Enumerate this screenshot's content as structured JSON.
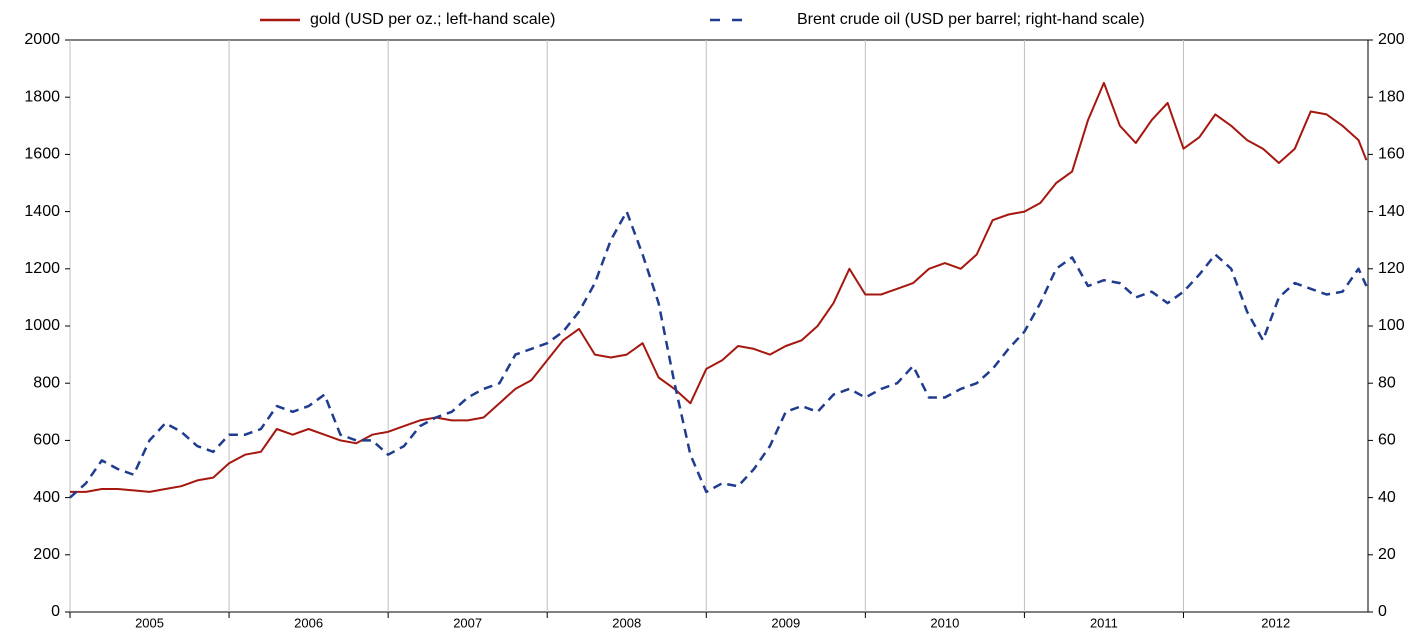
{
  "chart_data": {
    "type": "line",
    "x": [
      2005.0,
      2005.1,
      2005.2,
      2005.3,
      2005.4,
      2005.5,
      2005.6,
      2005.7,
      2005.8,
      2005.9,
      2006.0,
      2006.1,
      2006.2,
      2006.3,
      2006.4,
      2006.5,
      2006.6,
      2006.7,
      2006.8,
      2006.9,
      2007.0,
      2007.1,
      2007.2,
      2007.3,
      2007.4,
      2007.5,
      2007.6,
      2007.7,
      2007.8,
      2007.9,
      2008.0,
      2008.1,
      2008.2,
      2008.3,
      2008.4,
      2008.5,
      2008.6,
      2008.7,
      2008.8,
      2008.9,
      2009.0,
      2009.1,
      2009.2,
      2009.3,
      2009.4,
      2009.5,
      2009.6,
      2009.7,
      2009.8,
      2009.9,
      2010.0,
      2010.1,
      2010.2,
      2010.3,
      2010.4,
      2010.5,
      2010.6,
      2010.7,
      2010.8,
      2010.9,
      2011.0,
      2011.1,
      2011.2,
      2011.3,
      2011.4,
      2011.5,
      2011.6,
      2011.7,
      2011.8,
      2011.9,
      2012.0,
      2012.1,
      2012.2,
      2012.3,
      2012.4,
      2012.5,
      2012.6,
      2012.7,
      2012.8,
      2012.9,
      2013.0,
      2013.1,
      2013.15
    ],
    "series": [
      {
        "name": "gold (USD per oz.; left-hand scale)",
        "color": "#a5170f",
        "dash": "solid",
        "axis": "y",
        "values": [
          420,
          420,
          430,
          430,
          425,
          420,
          430,
          440,
          460,
          470,
          520,
          550,
          560,
          640,
          620,
          640,
          620,
          600,
          590,
          620,
          630,
          650,
          670,
          680,
          670,
          670,
          680,
          730,
          780,
          810,
          880,
          950,
          990,
          900,
          890,
          900,
          940,
          820,
          780,
          730,
          850,
          880,
          930,
          920,
          900,
          930,
          950,
          1000,
          1080,
          1200,
          1110,
          1110,
          1130,
          1150,
          1200,
          1220,
          1200,
          1250,
          1370,
          1390,
          1400,
          1430,
          1500,
          1540,
          1720,
          1850,
          1700,
          1640,
          1720,
          1780,
          1620,
          1660,
          1740,
          1700,
          1650,
          1620,
          1570,
          1620,
          1750,
          1740,
          1700,
          1650,
          1580
        ]
      },
      {
        "name": "Brent crude oil (USD per barrel; right-hand scale)",
        "color": "#1f3c8f",
        "dash": "dashed",
        "axis": "y2",
        "values": [
          40,
          45,
          53,
          50,
          48,
          60,
          66,
          63,
          58,
          56,
          62,
          62,
          64,
          72,
          70,
          72,
          76,
          62,
          60,
          60,
          55,
          58,
          65,
          68,
          70,
          75,
          78,
          80,
          90,
          92,
          94,
          98,
          105,
          115,
          130,
          140,
          125,
          108,
          80,
          55,
          42,
          45,
          44,
          50,
          58,
          70,
          72,
          70,
          76,
          78,
          75,
          78,
          80,
          86,
          75,
          75,
          78,
          80,
          85,
          92,
          98,
          108,
          120,
          124,
          114,
          116,
          115,
          110,
          112,
          108,
          112,
          118,
          125,
          120,
          105,
          95,
          110,
          115,
          113,
          111,
          112,
          120,
          114
        ]
      }
    ],
    "xlim": [
      2005,
      2013.16
    ],
    "xticks": [
      2005,
      2006,
      2007,
      2008,
      2009,
      2010,
      2011,
      2012
    ],
    "ylim": [
      0,
      2000
    ],
    "yticks": [
      0,
      200,
      400,
      600,
      800,
      1000,
      1200,
      1400,
      1600,
      1800,
      2000
    ],
    "y2lim": [
      0,
      200
    ],
    "y2ticks": [
      0,
      20,
      40,
      60,
      80,
      100,
      120,
      140,
      160,
      180,
      200
    ],
    "grid": "x",
    "legend": "top"
  }
}
